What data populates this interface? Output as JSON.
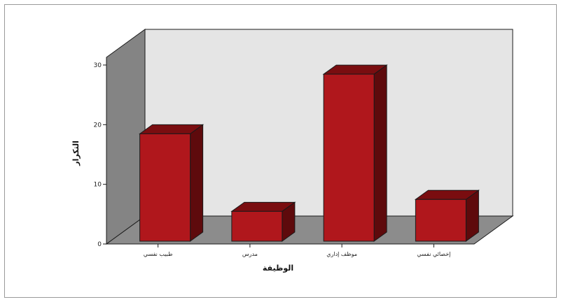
{
  "chart_data": {
    "type": "bar",
    "style": "3d",
    "categories": [
      "طبيب نفسي",
      "مدرس",
      "موظف إداري",
      "إخصائي نفسي"
    ],
    "values": [
      18,
      5,
      28,
      7
    ],
    "xlabel": "الوظيفة",
    "ylabel": "التكرار",
    "yticks": [
      0,
      10,
      20,
      30
    ],
    "ylim": [
      0,
      30
    ],
    "grid": false,
    "legend": "none",
    "colors": {
      "bar_front": "#b0171c",
      "bar_top": "#7a0d10",
      "bar_side": "#5e0a0c",
      "back_wall": "#e5e5e5",
      "side_wall": "#848484",
      "floor": "#8c8c8c",
      "outline": "#1a1a1a"
    }
  }
}
